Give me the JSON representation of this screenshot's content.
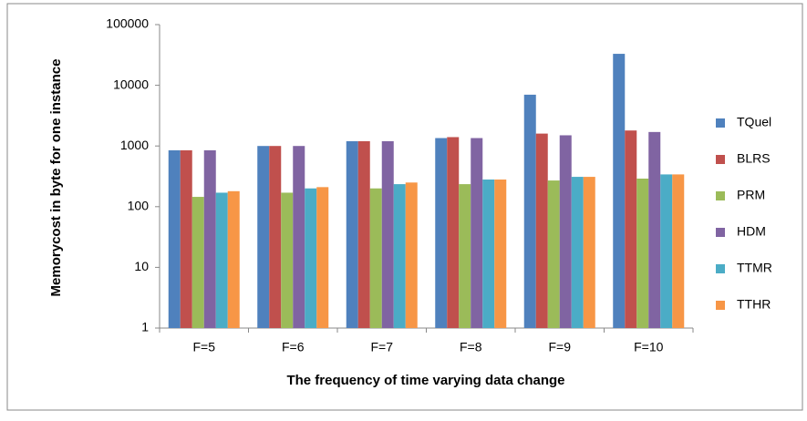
{
  "chart_data": {
    "type": "bar",
    "log_scale": true,
    "grid": false,
    "legend": "right",
    "xlabel": "The frequency of time varying data change",
    "ylabel": "Memorycost in byte for one instance",
    "categories": [
      "F=5",
      "F=6",
      "F=7",
      "F=8",
      "F=9",
      "F=10"
    ],
    "ylim": [
      1,
      100000
    ],
    "yticks": [
      1,
      10,
      100,
      1000,
      10000,
      100000
    ],
    "series": [
      {
        "name": "TQuel",
        "color": "#4f81bd",
        "values": [
          850,
          1000,
          1200,
          1350,
          7000,
          33000
        ]
      },
      {
        "name": "BLRS",
        "color": "#c0504d",
        "values": [
          850,
          1000,
          1200,
          1400,
          1600,
          1800
        ]
      },
      {
        "name": "PRM",
        "color": "#9bbb59",
        "values": [
          145,
          170,
          200,
          235,
          270,
          290
        ]
      },
      {
        "name": "HDM",
        "color": "#8064a2",
        "values": [
          850,
          1000,
          1200,
          1350,
          1500,
          1700
        ]
      },
      {
        "name": "TTMR",
        "color": "#4bacc6",
        "values": [
          170,
          200,
          235,
          280,
          310,
          340
        ]
      },
      {
        "name": "TTHR",
        "color": "#f79646",
        "values": [
          180,
          210,
          250,
          280,
          310,
          340
        ]
      }
    ]
  }
}
